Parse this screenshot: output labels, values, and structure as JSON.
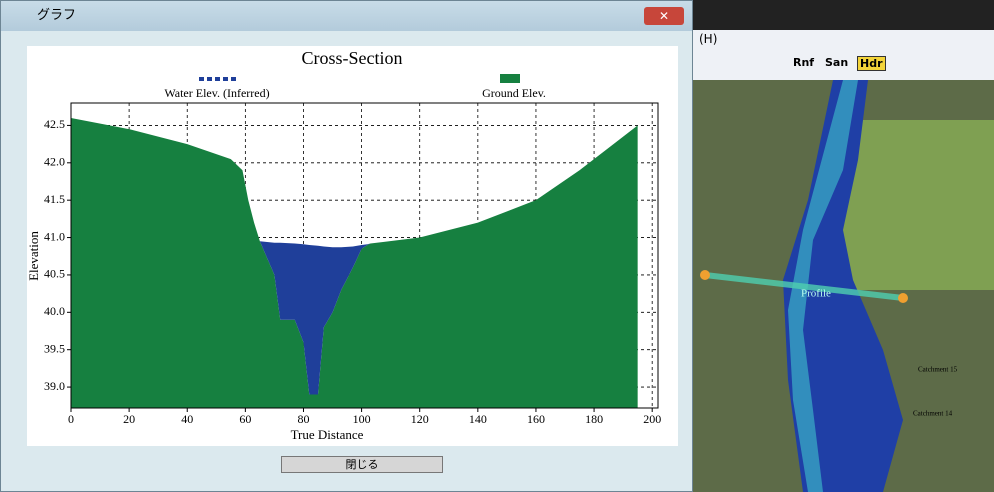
{
  "window": {
    "title": "グラフ",
    "close_button": "閉じる"
  },
  "app": {
    "menu": "(H)",
    "toolbar": [
      "Rnf",
      "San",
      "Hdr"
    ],
    "map_labels": [
      "Profile",
      "Catchment 15",
      "Catchment 14"
    ]
  },
  "chart_data": {
    "type": "area",
    "title": "Cross-Section",
    "x_label": "True Distance",
    "y_label": "Elevation",
    "x": [
      0,
      20,
      40,
      55,
      59,
      61,
      63,
      65,
      70,
      72,
      77,
      80,
      82,
      85,
      87,
      90,
      93,
      97,
      100,
      102,
      103,
      120,
      140,
      160,
      175,
      185,
      195
    ],
    "series": [
      {
        "name": "Ground Elev.",
        "color": "#168040",
        "values": [
          42.6,
          42.45,
          42.25,
          42.05,
          41.9,
          41.5,
          41.2,
          40.95,
          40.5,
          39.9,
          39.9,
          39.6,
          38.9,
          38.9,
          39.8,
          40.0,
          40.3,
          40.6,
          40.85,
          40.9,
          40.92,
          41.0,
          41.2,
          41.5,
          41.9,
          42.2,
          42.5
        ]
      },
      {
        "name": "Water Elev. (Inferred)",
        "color": "#1f3f9a",
        "values": [
          null,
          null,
          null,
          null,
          null,
          null,
          null,
          40.95,
          40.93,
          40.93,
          40.92,
          40.91,
          40.9,
          40.89,
          40.88,
          40.87,
          40.87,
          40.88,
          40.9,
          40.91,
          40.92,
          null,
          null,
          null,
          null,
          null,
          null
        ]
      }
    ],
    "xlim": [
      0,
      202
    ],
    "ylim": [
      38.72,
      42.8
    ],
    "xticks": [
      0,
      20,
      40,
      60,
      80,
      100,
      120,
      140,
      160,
      180,
      200
    ],
    "yticks": [
      {
        "value": 39.0,
        "label": "39.0"
      },
      39.5,
      {
        "value": 40.0,
        "label": "40.0"
      },
      40.5,
      {
        "value": 41.0,
        "label": "41.0"
      },
      41.5,
      {
        "value": 42.0,
        "label": "42.0"
      },
      42.5
    ],
    "grid": true
  }
}
